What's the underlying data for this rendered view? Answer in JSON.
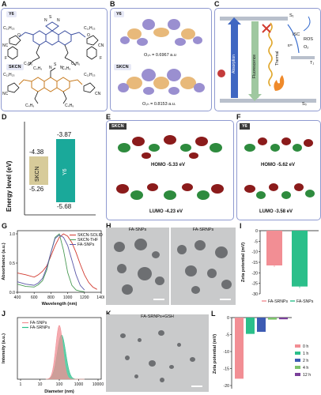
{
  "panels": {
    "A": "A",
    "B": "B",
    "C": "C",
    "D": "D",
    "E": "E",
    "F": "F",
    "G": "G",
    "H": "H",
    "I": "I",
    "J": "J",
    "K": "K",
    "L": "L"
  },
  "panelA": {
    "y6_tag": "Y6",
    "skcn_tag": "SKCN",
    "s_atom": "S",
    "n_atom": "N",
    "chain_c11": "C₁₁H₂₃",
    "chain_c2": "C₂H₅",
    "chain_c4": "C₄H₉",
    "nc": "NC",
    "cn": "CN",
    "f": "F",
    "o": "O"
  },
  "panelB": {
    "y6_tag": "Y6",
    "skcn_tag": "SKCN",
    "y6_osc": "Oₛₕ = 0.6967 a.u",
    "skcn_osc": "Oₛₕ = 0.8153 a.u."
  },
  "panelC": {
    "s1": "S₁",
    "s0": "S₀",
    "t1": "T₁",
    "isc": "ISC",
    "ros": "ROS",
    "o2": "O₂",
    "laser": "1064nm",
    "absorption": "Absorption",
    "fluorescence": "Fluorescence",
    "thermal": "Thermal",
    "e_label": "Eᵉᵗ"
  },
  "panelD": {
    "ylabel": "Energy  level (eV)",
    "skcn_label": "SKCN",
    "y6_label": "Y6",
    "skcn_lumo": "-4.38",
    "skcn_homo": "-5.26",
    "y6_lumo": "-3.87",
    "y6_homo": "-5.68"
  },
  "panelE": {
    "tag": "SKCN",
    "homo": "HOMO  -5.33 eV",
    "lumo": "LUMO  -4.23 eV"
  },
  "panelF": {
    "tag": "Y6",
    "homo": "HOMO  -5.62 eV",
    "lumo": "LUMO  -3.58 eV"
  },
  "panelH": {
    "left_title": "FA-SNPs",
    "right_title": "FA-SRNPs"
  },
  "panelK": {
    "title": "FA-SRNPs+GSH"
  },
  "colors": {
    "skcn_box": "#d7cb9a",
    "y6_box": "#1aa99a",
    "solid": "#d23a2f",
    "thf": "#4a9a55",
    "fa": "#5b58a8",
    "bar_pink": "#f28e94",
    "bar_green": "#2bbf8a"
  },
  "chart_data": [
    {
      "id": "G",
      "type": "line",
      "xlabel": "Wavelength (nm)",
      "ylabel": "Absorbance (a.u.)",
      "xlim": [
        400,
        1400
      ],
      "xticks": [
        "400",
        "600",
        "800",
        "1000",
        "1200",
        "1400"
      ],
      "ylim": [
        0,
        1.0
      ],
      "yticks": [
        "0.0",
        "0.5",
        "1.0"
      ],
      "legend": "top-right",
      "series": [
        {
          "name": "SKCN-SOLID",
          "x": [
            400,
            500,
            600,
            650,
            700,
            750,
            800,
            850,
            900,
            950,
            1000,
            1050,
            1100,
            1150,
            1200,
            1250,
            1300,
            1350
          ],
          "y": [
            0.33,
            0.3,
            0.26,
            0.3,
            0.36,
            0.45,
            0.62,
            0.8,
            0.94,
            1.0,
            0.96,
            0.85,
            0.68,
            0.48,
            0.3,
            0.17,
            0.09,
            0.05
          ]
        },
        {
          "name": "SKCN-THF",
          "x": [
            400,
            500,
            600,
            650,
            700,
            750,
            800,
            850,
            900,
            950,
            1000,
            1050,
            1100,
            1150,
            1200
          ],
          "y": [
            0.14,
            0.1,
            0.09,
            0.13,
            0.2,
            0.38,
            0.68,
            0.94,
            1.0,
            0.72,
            0.34,
            0.12,
            0.04,
            0.02,
            0.01
          ]
        },
        {
          "name": "FA-SNPs",
          "x": [
            400,
            500,
            600,
            650,
            700,
            750,
            800,
            850,
            900,
            950,
            1000,
            1050,
            1100,
            1150,
            1200
          ],
          "y": [
            0.18,
            0.14,
            0.12,
            0.16,
            0.24,
            0.42,
            0.68,
            0.92,
            0.98,
            0.94,
            0.8,
            0.55,
            0.3,
            0.12,
            0.04
          ]
        }
      ]
    },
    {
      "id": "I",
      "type": "bar",
      "ylabel": "Zeta potential (mV)",
      "ylim": [
        -30,
        0
      ],
      "yticks": [
        "0",
        "-5",
        "-10",
        "-15",
        "-20",
        "-25",
        "-30"
      ],
      "categories": [
        "FA-SRNPs",
        "FA-SNPs"
      ],
      "values": [
        -16.5,
        -26.5
      ],
      "legend": "bottom"
    },
    {
      "id": "J",
      "type": "area",
      "xlabel": "Diameter (nm)",
      "ylabel": "Intensity (a.u.)",
      "xscale": "log",
      "xticks": [
        "1",
        "10",
        "100",
        "1000",
        "10000"
      ],
      "legend": "top-right",
      "series": [
        {
          "name": "FA-SNPs",
          "peak": 100,
          "height": 0.95,
          "width": 0.42
        },
        {
          "name": "FA-SRNPs",
          "peak": 130,
          "height": 0.78,
          "width": 0.5
        }
      ]
    },
    {
      "id": "L",
      "type": "bar",
      "ylabel": "Zeta potential (mV)",
      "ylim": [
        -20,
        0
      ],
      "yticks": [
        "0",
        "-5",
        "-10",
        "-15",
        "-20"
      ],
      "categories": [
        "0 h",
        "1 h",
        "2 h",
        "4 h",
        "12 h"
      ],
      "values": [
        -18,
        -4.8,
        -4.2,
        -0.6,
        -0.5
      ],
      "series_colors": [
        "#f28e94",
        "#2bbf8a",
        "#3d5bb3",
        "#7cc36b",
        "#7a3f9a"
      ],
      "legend": "right"
    }
  ]
}
